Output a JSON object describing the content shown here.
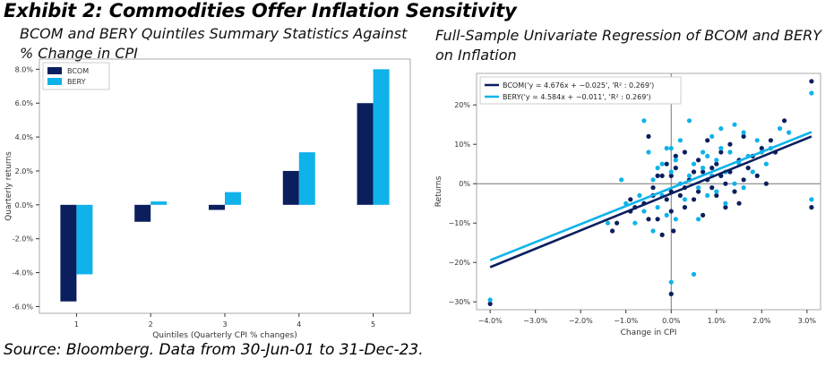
{
  "title": "Exhibit 2: Commodities Offer Inflation Sensitivity",
  "source": "Source: Bloomberg. Data from 30-Jun-01 to 31-Dec-23.",
  "colors": {
    "bcom": "#0b1f5e",
    "bery": "#0fb3ea",
    "axis": "#333333",
    "frame": "#aaaaaa",
    "refline": "#777777"
  },
  "chart_data": [
    {
      "type": "bar",
      "title": "BCOM and BERY Quintiles Summary Statistics Against % Change in CPI",
      "xlabel": "Quintiles (Quarterly CPI % changes)",
      "ylabel": "Quarterly returns",
      "categories": [
        "1",
        "2",
        "3",
        "4",
        "5"
      ],
      "series": [
        {
          "name": "BCOM",
          "values": [
            -5.7,
            -1.0,
            -0.3,
            2.0,
            6.0
          ]
        },
        {
          "name": "BERY",
          "values": [
            -4.1,
            0.2,
            0.75,
            3.1,
            8.0
          ]
        }
      ],
      "ylim": [
        -6.4,
        8.6
      ],
      "yticks": [
        -6.0,
        -4.0,
        -2.0,
        0.0,
        2.0,
        4.0,
        6.0,
        8.0
      ],
      "yticklabels": [
        "-6.0%",
        "-4.0%",
        "-2.0%",
        "0.0%",
        "2.0%",
        "4.0%",
        "6.0%",
        "8.0%"
      ],
      "legend_position": "top-left",
      "grid": false
    },
    {
      "type": "scatter",
      "title": "Full-Sample Univariate Regression of BCOM and BERY on Inflation",
      "xlabel": "Change in CPI",
      "ylabel": "Returns",
      "xlim": [
        -4.3,
        3.3
      ],
      "ylim": [
        -32,
        28
      ],
      "xticks": [
        -4.0,
        -3.0,
        -2.0,
        -1.0,
        0.0,
        1.0,
        2.0,
        3.0
      ],
      "xticklabels": [
        "−4.0%",
        "−3.0%",
        "−2.0%",
        "−1.0%",
        "0.0%",
        "1.0%",
        "2.0%",
        "3.0%"
      ],
      "yticks": [
        -30,
        -20,
        -10,
        0,
        10,
        20
      ],
      "yticklabels": [
        "−30%",
        "−20%",
        "−10%",
        "0%",
        "10%",
        "20%"
      ],
      "legend_position": "top-left",
      "grid": false,
      "series": [
        {
          "name": "BCOM('y = 4.676x + −0.025', 'R² : 0.269')",
          "slope": 4.676,
          "intercept": -0.025,
          "points": [
            [
              -4.0,
              -30.5
            ],
            [
              -1.3,
              -12.0
            ],
            [
              -1.2,
              -10.0
            ],
            [
              -0.9,
              -7.0
            ],
            [
              -0.9,
              -4.0
            ],
            [
              -0.8,
              -6.0
            ],
            [
              -0.6,
              -5.0
            ],
            [
              -0.5,
              -9.0
            ],
            [
              -0.5,
              12.0
            ],
            [
              -0.4,
              -1.0
            ],
            [
              -0.4,
              -3.0
            ],
            [
              -0.3,
              2.0
            ],
            [
              -0.3,
              -9.0
            ],
            [
              -0.2,
              2.0
            ],
            [
              -0.2,
              -13.0
            ],
            [
              -0.1,
              5.0
            ],
            [
              -0.1,
              -4.0
            ],
            [
              0.0,
              2.0
            ],
            [
              0.0,
              -2.0
            ],
            [
              0.0,
              -7.0
            ],
            [
              0.05,
              -12.0
            ],
            [
              0.0,
              -28.0
            ],
            [
              0.1,
              7.0
            ],
            [
              0.1,
              4.0
            ],
            [
              0.2,
              -3.0
            ],
            [
              0.3,
              -1.0
            ],
            [
              0.3,
              8.0
            ],
            [
              0.3,
              -6.0
            ],
            [
              0.4,
              1.0
            ],
            [
              0.5,
              3.0
            ],
            [
              0.5,
              -4.0
            ],
            [
              0.6,
              6.0
            ],
            [
              0.6,
              -2.0
            ],
            [
              0.7,
              3.0
            ],
            [
              0.7,
              -8.0
            ],
            [
              0.8,
              1.0
            ],
            [
              0.8,
              11.0
            ],
            [
              0.9,
              -1.0
            ],
            [
              0.9,
              4.0
            ],
            [
              1.0,
              5.0
            ],
            [
              1.0,
              -3.0
            ],
            [
              1.1,
              8.0
            ],
            [
              1.1,
              2.0
            ],
            [
              1.2,
              0.0
            ],
            [
              1.2,
              -6.0
            ],
            [
              1.3,
              10.0
            ],
            [
              1.3,
              3.0
            ],
            [
              1.4,
              -2.0
            ],
            [
              1.5,
              6.0
            ],
            [
              1.5,
              -5.0
            ],
            [
              1.6,
              1.0
            ],
            [
              1.6,
              12.0
            ],
            [
              1.7,
              4.0
            ],
            [
              1.8,
              7.0
            ],
            [
              1.9,
              2.0
            ],
            [
              2.0,
              9.0
            ],
            [
              2.1,
              0.0
            ],
            [
              2.2,
              11.0
            ],
            [
              2.3,
              8.0
            ],
            [
              2.5,
              16.0
            ],
            [
              3.1,
              -6.0
            ],
            [
              3.1,
              26.0
            ]
          ]
        },
        {
          "name": "BERY('y = 4.584x + −0.011', 'R² : 0.269')",
          "slope": 4.584,
          "intercept": -0.011,
          "points": [
            [
              -4.0,
              -29.5
            ],
            [
              -1.4,
              -10.0
            ],
            [
              -1.1,
              1.0
            ],
            [
              -1.0,
              -5.0
            ],
            [
              -0.8,
              -10.0
            ],
            [
              -0.7,
              -3.0
            ],
            [
              -0.6,
              -7.0
            ],
            [
              -0.6,
              16.0
            ],
            [
              -0.5,
              8.0
            ],
            [
              -0.4,
              1.0
            ],
            [
              -0.4,
              -12.0
            ],
            [
              -0.3,
              4.0
            ],
            [
              -0.3,
              -6.0
            ],
            [
              -0.2,
              5.0
            ],
            [
              -0.2,
              -3.0
            ],
            [
              -0.1,
              9.0
            ],
            [
              -0.1,
              -8.0
            ],
            [
              0.0,
              3.0
            ],
            [
              0.0,
              9.0
            ],
            [
              0.0,
              -25.0
            ],
            [
              0.1,
              6.0
            ],
            [
              0.1,
              -9.0
            ],
            [
              0.2,
              0.0
            ],
            [
              0.2,
              11.0
            ],
            [
              0.3,
              -4.0
            ],
            [
              0.4,
              2.0
            ],
            [
              0.4,
              16.0
            ],
            [
              0.5,
              -23.0
            ],
            [
              0.5,
              5.0
            ],
            [
              0.6,
              -1.0
            ],
            [
              0.6,
              -9.0
            ],
            [
              0.7,
              4.0
            ],
            [
              0.7,
              8.0
            ],
            [
              0.8,
              -3.0
            ],
            [
              0.8,
              7.0
            ],
            [
              0.9,
              2.0
            ],
            [
              0.9,
              12.0
            ],
            [
              1.0,
              -2.0
            ],
            [
              1.0,
              6.0
            ],
            [
              1.1,
              9.0
            ],
            [
              1.1,
              14.0
            ],
            [
              1.2,
              -5.0
            ],
            [
              1.2,
              3.0
            ],
            [
              1.3,
              8.0
            ],
            [
              1.4,
              0.0
            ],
            [
              1.4,
              15.0
            ],
            [
              1.5,
              5.0
            ],
            [
              1.6,
              -1.0
            ],
            [
              1.6,
              13.0
            ],
            [
              1.7,
              7.0
            ],
            [
              1.8,
              3.0
            ],
            [
              1.9,
              11.0
            ],
            [
              2.0,
              8.0
            ],
            [
              2.1,
              5.0
            ],
            [
              2.2,
              9.0
            ],
            [
              2.4,
              14.0
            ],
            [
              2.6,
              13.0
            ],
            [
              3.1,
              -4.0
            ],
            [
              3.1,
              23.0
            ]
          ]
        }
      ]
    }
  ]
}
